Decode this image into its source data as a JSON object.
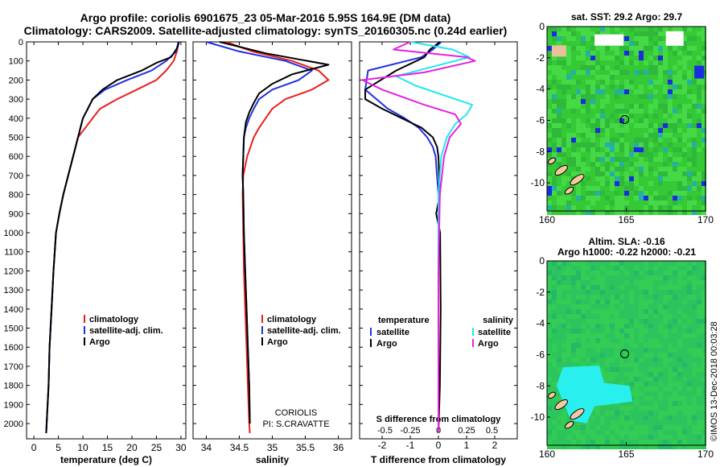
{
  "header": {
    "line1": "Argo profile: coriolis 6901675_23 05-Mar-2016 5.95S 164.9E (DM data)",
    "line2": "Climatology: CARS2009. Satellite-adjusted climatology: synTS_20160305.nc (0.24d earlier)"
  },
  "colors": {
    "climatology": "#e8201c",
    "satellite": "#2030e0",
    "argo": "#000000",
    "sal_satellite": "#20e8f0",
    "sal_argo": "#e820e0"
  },
  "chart_data": [
    {
      "type": "line",
      "id": "temperature",
      "xlabel": "temperature (deg C)",
      "xlim": [
        -1.5,
        31
      ],
      "ylim": [
        0,
        2080
      ],
      "xticks": [
        0,
        5,
        10,
        15,
        20,
        25,
        30
      ],
      "xtick_labels": [
        "0",
        "5",
        "10",
        "15",
        "20",
        "25",
        "30"
      ],
      "yticks": [
        0,
        100,
        200,
        300,
        400,
        500,
        600,
        700,
        800,
        900,
        1000,
        1100,
        1200,
        1300,
        1400,
        1500,
        1600,
        1700,
        1800,
        1900,
        2000
      ],
      "ytick_labels": [
        "0",
        "100",
        "200",
        "300",
        "400",
        "500",
        "600",
        "700",
        "800",
        "900",
        "1000",
        "1100",
        "1200",
        "1300",
        "1400",
        "1500",
        "1600",
        "1700",
        "1800",
        "1900",
        "2000"
      ],
      "legend": {
        "position": "center-bottom",
        "labels": [
          "climatology",
          "satellite-adj. clim.",
          "Argo"
        ]
      },
      "series": [
        {
          "name": "climatology",
          "color": "#e8201c",
          "x": [
            29.5,
            29.2,
            28.5,
            27.0,
            25.0,
            21.0,
            17.0,
            13.5,
            12.0,
            10.5,
            9.0,
            8.0,
            7.0,
            6.0,
            5.2,
            4.5,
            4.0,
            3.6,
            3.2,
            3.0,
            2.8,
            2.6,
            2.5
          ],
          "y": [
            0,
            50,
            100,
            150,
            200,
            250,
            300,
            350,
            400,
            450,
            500,
            600,
            700,
            800,
            900,
            1000,
            1200,
            1400,
            1600,
            1800,
            1900,
            2000,
            2050
          ]
        },
        {
          "name": "satellite-adj. clim.",
          "color": "#2030e0",
          "x": [
            29.5,
            29.0,
            27.0,
            24.0,
            19.0,
            14.5,
            12.0,
            11.0,
            10.0,
            9.0,
            8.0,
            7.0,
            6.0,
            5.2,
            4.5,
            4.0,
            3.6,
            3.2,
            3.0,
            2.8,
            2.6,
            2.5
          ],
          "y": [
            0,
            50,
            100,
            150,
            200,
            250,
            300,
            350,
            400,
            500,
            600,
            700,
            800,
            900,
            1000,
            1200,
            1400,
            1600,
            1800,
            1900,
            2000,
            2050
          ]
        },
        {
          "name": "Argo",
          "color": "#000000",
          "x": [
            29.6,
            29.3,
            28.0,
            25.0,
            22.0,
            17.0,
            14.0,
            12.0,
            11.0,
            10.0,
            9.0,
            8.0,
            7.0,
            6.0,
            5.2,
            4.5,
            4.0,
            3.6,
            3.2,
            3.0,
            2.8,
            2.6,
            2.5
          ],
          "y": [
            0,
            30,
            80,
            110,
            150,
            200,
            250,
            300,
            350,
            400,
            500,
            600,
            700,
            800,
            900,
            1000,
            1200,
            1400,
            1600,
            1800,
            1900,
            2000,
            2050
          ]
        }
      ]
    },
    {
      "type": "line",
      "id": "salinity",
      "xlabel": "salinity",
      "xlim": [
        33.8,
        36.2
      ],
      "ylim": [
        0,
        2080
      ],
      "xticks": [
        34,
        34.5,
        35,
        35.5,
        36
      ],
      "xtick_labels": [
        "34",
        "34.5",
        "35",
        "35.5",
        "36"
      ],
      "legend": {
        "position": "center-bottom",
        "labels": [
          "climatology",
          "satellite-adj. clim.",
          "Argo"
        ]
      },
      "annotation": [
        "CORIOLIS",
        "PI: S.CRAVATTE"
      ],
      "series": [
        {
          "name": "climatology",
          "color": "#e8201c",
          "x": [
            34.3,
            34.7,
            35.3,
            35.7,
            35.85,
            35.6,
            35.2,
            35.0,
            34.9,
            34.8,
            34.72,
            34.62,
            34.56,
            34.55,
            34.56,
            34.57,
            34.59,
            34.61,
            34.63,
            34.65,
            34.66
          ],
          "y": [
            0,
            50,
            100,
            150,
            200,
            250,
            300,
            350,
            400,
            450,
            500,
            600,
            700,
            800,
            1000,
            1200,
            1400,
            1600,
            1800,
            2000,
            2050
          ]
        },
        {
          "name": "satellite-adj. clim.",
          "color": "#2030e0",
          "x": [
            34.0,
            34.5,
            35.2,
            35.6,
            35.4,
            35.0,
            34.8,
            34.72,
            34.65,
            34.6,
            34.57,
            34.56,
            34.55,
            34.56,
            34.57,
            34.59,
            34.61,
            34.63,
            34.65,
            34.66
          ],
          "y": [
            0,
            50,
            100,
            150,
            200,
            250,
            300,
            350,
            400,
            450,
            500,
            600,
            700,
            800,
            1000,
            1200,
            1400,
            1600,
            1800,
            2000
          ]
        },
        {
          "name": "Argo",
          "color": "#000000",
          "x": [
            34.2,
            34.9,
            35.85,
            35.3,
            35.0,
            34.8,
            34.72,
            34.65,
            34.6,
            34.57,
            34.56,
            34.55,
            34.56,
            34.57,
            34.59,
            34.61,
            34.63,
            34.65,
            34.66
          ],
          "y": [
            0,
            60,
            120,
            170,
            220,
            270,
            320,
            370,
            420,
            500,
            600,
            700,
            800,
            1000,
            1200,
            1400,
            1600,
            1800,
            2000
          ]
        }
      ]
    },
    {
      "type": "line",
      "id": "differences",
      "xlabel": "T difference from climatology",
      "xlabel_top": "S difference from climatology",
      "xlim": [
        -2.8,
        2.8
      ],
      "ylim": [
        0,
        2080
      ],
      "xticks": [
        -2,
        -1,
        0,
        1,
        2
      ],
      "xtick_labels": [
        "-2",
        "-1",
        "0",
        "1",
        "2"
      ],
      "s_ticks": [
        "-0.5",
        "-0.25",
        "0",
        "0.25",
        "0.5"
      ],
      "legend_temperature": {
        "title": "temperature",
        "labels": [
          "satellite",
          "Argo"
        ]
      },
      "legend_salinity": {
        "title": "salinity",
        "labels": [
          "satellite",
          "Argo"
        ]
      },
      "series": [
        {
          "name": "T satellite",
          "color": "#2030e0",
          "x": [
            0.1,
            -0.2,
            -0.6,
            -2.5,
            -2.6,
            -2.2,
            -1.8,
            -1.2,
            -0.7,
            -0.4,
            -0.2,
            -0.1,
            0,
            0,
            0,
            0,
            0
          ],
          "y": [
            0,
            40,
            80,
            150,
            250,
            300,
            350,
            400,
            450,
            500,
            550,
            600,
            800,
            1000,
            1400,
            1800,
            2050
          ]
        },
        {
          "name": "T Argo",
          "color": "#000000",
          "x": [
            0.05,
            -0.3,
            -0.5,
            -1.5,
            -2.6,
            -2.6,
            -2.0,
            -1.3,
            -0.6,
            -0.2,
            -0.05,
            0,
            0.05,
            -0.08,
            0.06,
            0.08,
            0.05,
            0
          ],
          "y": [
            0,
            40,
            80,
            150,
            250,
            300,
            350,
            400,
            450,
            500,
            550,
            600,
            800,
            900,
            1000,
            1400,
            1800,
            2050
          ]
        },
        {
          "name": "S satellite",
          "color": "#20e8f0",
          "x": [
            -1.0,
            0.5,
            1.1,
            -0.2,
            -1.5,
            -0.8,
            1.2,
            1.0,
            0.6,
            0.3,
            0.1,
            0,
            0,
            0,
            0
          ],
          "y": [
            0,
            40,
            80,
            130,
            180,
            230,
            330,
            380,
            430,
            500,
            600,
            800,
            1200,
            1600,
            2050
          ]
        },
        {
          "name": "S Argo",
          "color": "#e820e0",
          "x": [
            -1.0,
            -1.6,
            1.0,
            1.3,
            -0.5,
            -2.7,
            -2.0,
            -0.5,
            0.6,
            0.8,
            0.4,
            0.2,
            0.05,
            0,
            0,
            0
          ],
          "y": [
            0,
            40,
            80,
            100,
            160,
            200,
            250,
            330,
            380,
            430,
            500,
            600,
            800,
            1200,
            1600,
            2050
          ]
        }
      ]
    }
  ],
  "maps": [
    {
      "id": "sst",
      "title1": "sat. SST: 29.2 Argo: 29.7",
      "title2": "",
      "xticks": [
        "160",
        "165",
        "170"
      ],
      "yticks": [
        "0",
        "-2",
        "-4",
        "-6",
        "-8",
        "-10"
      ],
      "argo_lon": 164.9,
      "argo_lat": -5.95
    },
    {
      "id": "sla",
      "title1": "Altim. SLA: -0.16",
      "title2": "Argo h1000: -0.22 h2000: -0.21",
      "xticks": [
        "160",
        "165",
        "170"
      ],
      "yticks": [
        "0",
        "-2",
        "-4",
        "-6",
        "-8",
        "-10"
      ],
      "argo_lon": 164.9,
      "argo_lat": -5.95
    }
  ],
  "watermark": "©IMOS 13-Dec-2018 00:03:28"
}
